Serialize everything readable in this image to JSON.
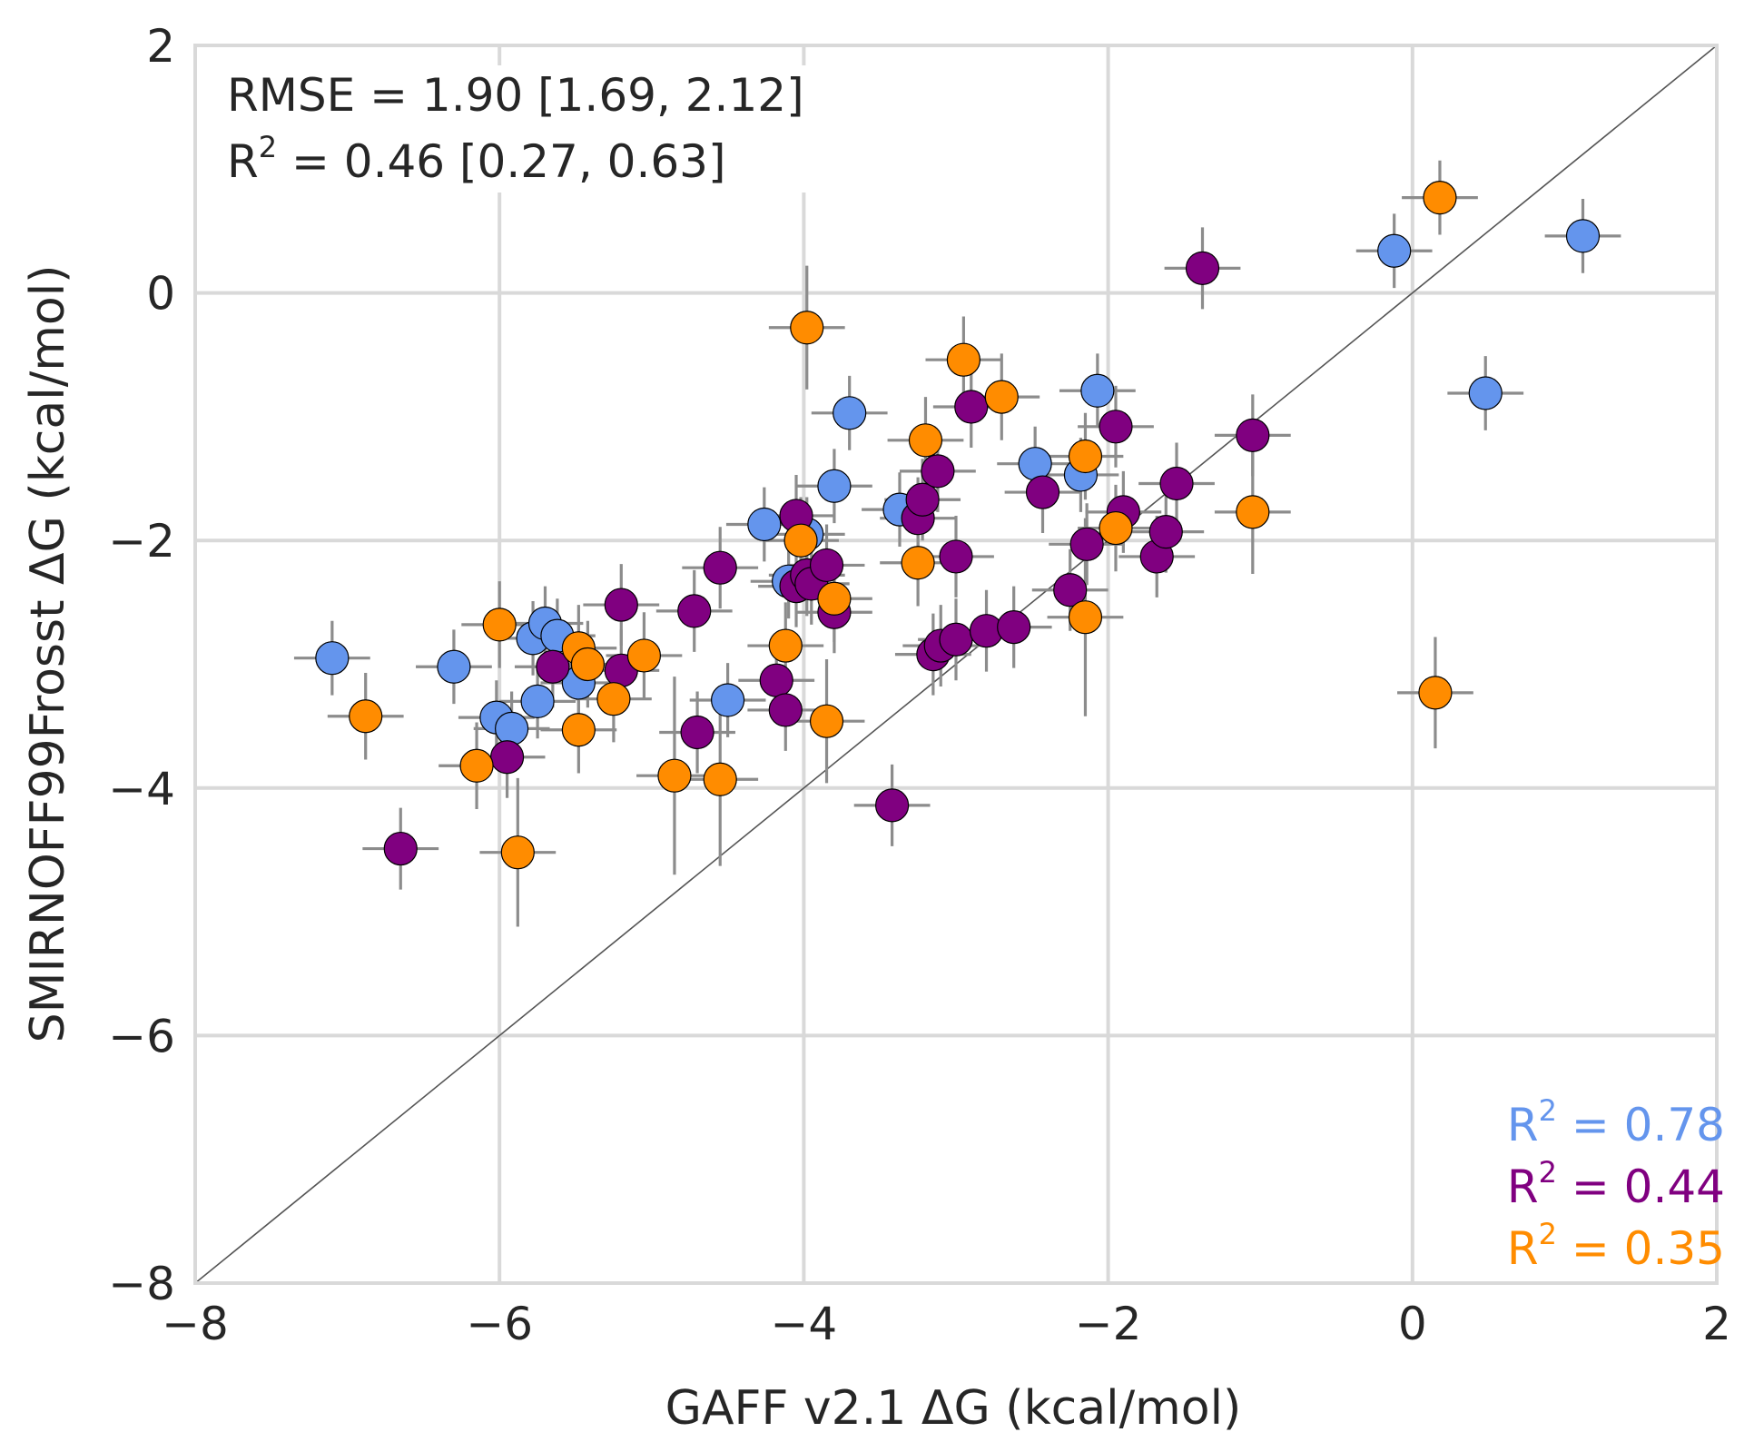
{
  "chart_data": {
    "type": "scatter",
    "xlabel": "GAFF v2.1 ΔG (kcal/mol)",
    "ylabel": "SMIRNOFF99Frosst ΔG (kcal/mol)",
    "xlim": [
      -8,
      2
    ],
    "ylim": [
      -8,
      2
    ],
    "x_ticks": [
      "−8",
      "−6",
      "−4",
      "−2",
      "0",
      "2"
    ],
    "y_ticks": [
      "−8",
      "−6",
      "−4",
      "−2",
      "0",
      "2"
    ],
    "grid": true,
    "identity_line": true,
    "annotation": {
      "rmse": "RMSE = 1.90 [1.69, 2.12]",
      "r2_prefix": "R",
      "r2_sup": "2",
      "r2_suffix": " = 0.46 [0.27, 0.63]"
    },
    "series": [
      {
        "color": "#6495ed",
        "r2_prefix": "R",
        "r2_sup": "2",
        "r2_suffix": " = 0.78",
        "points": [
          [
            -7.1,
            -2.95,
            0.25,
            0.3
          ],
          [
            -6.3,
            -3.02,
            0.25,
            0.3
          ],
          [
            -6.02,
            -3.43,
            0.25,
            0.3
          ],
          [
            -5.92,
            -3.52,
            0.25,
            0.3
          ],
          [
            -5.78,
            -2.79,
            0.25,
            0.3
          ],
          [
            -5.75,
            -3.3,
            0.25,
            0.3
          ],
          [
            -5.7,
            -2.67,
            0.25,
            0.3
          ],
          [
            -5.62,
            -2.77,
            0.25,
            0.3
          ],
          [
            -5.48,
            -3.15,
            0.25,
            0.3
          ],
          [
            -4.5,
            -3.29,
            0.25,
            0.3
          ],
          [
            -4.26,
            -1.87,
            0.25,
            0.3
          ],
          [
            -4.1,
            -2.33,
            0.25,
            0.3
          ],
          [
            -3.98,
            -1.95,
            0.25,
            0.3
          ],
          [
            -3.8,
            -1.56,
            0.25,
            0.3
          ],
          [
            -3.7,
            -0.97,
            0.25,
            0.3
          ],
          [
            -3.37,
            -1.75,
            0.25,
            0.3
          ],
          [
            -2.48,
            -1.38,
            0.25,
            0.3
          ],
          [
            -2.18,
            -1.47,
            0.25,
            0.3
          ],
          [
            -2.07,
            -0.79,
            0.25,
            0.3
          ],
          [
            -0.12,
            0.34,
            0.25,
            0.3
          ],
          [
            0.48,
            -0.81,
            0.25,
            0.3
          ],
          [
            1.12,
            0.46,
            0.25,
            0.3
          ]
        ]
      },
      {
        "color": "#800080",
        "r2_prefix": "R",
        "r2_sup": "2",
        "r2_suffix": " = 0.44",
        "points": [
          [
            -6.65,
            -4.49,
            0.25,
            0.33
          ],
          [
            -5.95,
            -3.75,
            0.25,
            0.33
          ],
          [
            -5.65,
            -3.02,
            0.25,
            0.33
          ],
          [
            -5.2,
            -2.52,
            0.25,
            0.33
          ],
          [
            -5.2,
            -3.05,
            0.25,
            0.33
          ],
          [
            -4.72,
            -2.57,
            0.25,
            0.33
          ],
          [
            -4.7,
            -3.55,
            0.25,
            0.33
          ],
          [
            -4.55,
            -2.22,
            0.25,
            0.33
          ],
          [
            -4.18,
            -3.13,
            0.25,
            0.33
          ],
          [
            -4.12,
            -3.37,
            0.25,
            0.33
          ],
          [
            -4.05,
            -1.8,
            0.25,
            0.33
          ],
          [
            -4.05,
            -2.37,
            0.25,
            0.33
          ],
          [
            -3.98,
            -2.28,
            0.25,
            0.33
          ],
          [
            -3.95,
            -2.35,
            0.25,
            0.33
          ],
          [
            -3.85,
            -2.2,
            0.25,
            0.33
          ],
          [
            -3.8,
            -2.58,
            0.25,
            0.33
          ],
          [
            -3.42,
            -4.14,
            0.25,
            0.33
          ],
          [
            -3.25,
            -1.82,
            0.25,
            0.33
          ],
          [
            -3.22,
            -1.67,
            0.25,
            0.33
          ],
          [
            -3.15,
            -2.92,
            0.25,
            0.33
          ],
          [
            -3.12,
            -1.44,
            0.25,
            0.33
          ],
          [
            -3.1,
            -2.85,
            0.25,
            0.33
          ],
          [
            -3.0,
            -2.13,
            0.25,
            0.33
          ],
          [
            -3.0,
            -2.8,
            0.25,
            0.33
          ],
          [
            -2.9,
            -0.92,
            0.25,
            0.33
          ],
          [
            -2.8,
            -2.73,
            0.25,
            0.33
          ],
          [
            -2.62,
            -2.7,
            0.25,
            0.33
          ],
          [
            -2.43,
            -1.61,
            0.25,
            0.33
          ],
          [
            -2.25,
            -2.4,
            0.25,
            0.33
          ],
          [
            -2.14,
            -2.03,
            0.25,
            0.33
          ],
          [
            -1.95,
            -1.08,
            0.25,
            0.33
          ],
          [
            -1.9,
            -1.77,
            0.25,
            0.33
          ],
          [
            -1.68,
            -2.13,
            0.25,
            0.33
          ],
          [
            -1.62,
            -1.93,
            0.25,
            0.33
          ],
          [
            -1.55,
            -1.54,
            0.25,
            0.33
          ],
          [
            -1.38,
            0.2,
            0.25,
            0.33
          ],
          [
            -1.05,
            -1.15,
            0.25,
            0.33
          ]
        ]
      },
      {
        "color": "#ff8c00",
        "r2_prefix": "R",
        "r2_sup": "2",
        "r2_suffix": " = 0.35",
        "points": [
          [
            -6.88,
            -3.42,
            0.25,
            0.35
          ],
          [
            -6.15,
            -3.82,
            0.25,
            0.35
          ],
          [
            -6.0,
            -2.68,
            0.25,
            0.35
          ],
          [
            -5.88,
            -4.52,
            0.25,
            0.6
          ],
          [
            -5.48,
            -2.87,
            0.25,
            0.35
          ],
          [
            -5.48,
            -3.53,
            0.25,
            0.35
          ],
          [
            -5.42,
            -3.0,
            0.25,
            0.35
          ],
          [
            -5.25,
            -3.28,
            0.25,
            0.35
          ],
          [
            -5.05,
            -2.93,
            0.25,
            0.35
          ],
          [
            -4.85,
            -3.9,
            0.25,
            0.8
          ],
          [
            -4.55,
            -3.93,
            0.25,
            0.7
          ],
          [
            -4.12,
            -2.85,
            0.25,
            0.35
          ],
          [
            -4.02,
            -2.0,
            0.25,
            0.35
          ],
          [
            -3.98,
            -0.28,
            0.25,
            0.5
          ],
          [
            -3.85,
            -3.46,
            0.25,
            0.5
          ],
          [
            -3.8,
            -2.47,
            0.25,
            0.35
          ],
          [
            -3.25,
            -2.18,
            0.25,
            0.35
          ],
          [
            -3.2,
            -1.19,
            0.25,
            0.35
          ],
          [
            -2.95,
            -0.54,
            0.25,
            0.35
          ],
          [
            -2.7,
            -0.84,
            0.25,
            0.35
          ],
          [
            -2.15,
            -1.32,
            0.25,
            0.35
          ],
          [
            -2.15,
            -2.62,
            0.25,
            0.8
          ],
          [
            -1.95,
            -1.9,
            0.25,
            0.35
          ],
          [
            -1.05,
            -1.77,
            0.25,
            0.5
          ],
          [
            0.15,
            -3.23,
            0.25,
            0.45
          ],
          [
            0.18,
            0.77,
            0.25,
            0.3
          ]
        ]
      }
    ]
  }
}
